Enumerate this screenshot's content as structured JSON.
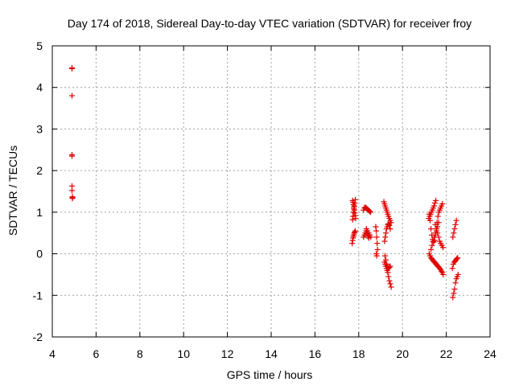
{
  "chart_data": {
    "type": "scatter",
    "title": "Day 174 of 2018, Sidereal Day-to-day VTEC variation (SDTVAR) for receiver froy",
    "xlabel": "GPS time / hours",
    "ylabel": "SDTVAR / TECUs",
    "xlim": [
      4,
      24
    ],
    "ylim": [
      -2,
      5
    ],
    "xticks": [
      4,
      6,
      8,
      10,
      12,
      14,
      16,
      18,
      20,
      22,
      24
    ],
    "yticks": [
      -2,
      -1,
      0,
      1,
      2,
      3,
      4,
      5
    ],
    "xtick_labels": [
      "4",
      "6",
      "8",
      "10",
      "12",
      "14",
      "16",
      "18",
      "20",
      "22",
      "24"
    ],
    "ytick_labels": [
      "-2",
      "-1",
      "0",
      "1",
      "2",
      "3",
      "4",
      "5"
    ],
    "grid": true,
    "marker": "+",
    "color": "#e00000",
    "series": [
      {
        "name": "SDTVAR",
        "x": [
          4.9,
          4.9,
          4.9,
          4.9,
          4.9,
          4.9,
          4.9,
          4.92,
          4.92,
          4.92,
          17.72,
          17.74,
          17.76,
          17.78,
          17.8,
          17.82,
          17.84,
          17.86,
          17.72,
          17.74,
          17.76,
          17.78,
          17.8,
          17.82,
          17.84,
          17.7,
          17.72,
          17.74,
          17.76,
          17.78,
          17.8,
          17.82,
          17.84,
          18.22,
          18.26,
          18.3,
          18.34,
          18.38,
          18.42,
          18.46,
          18.5,
          18.54,
          18.22,
          18.26,
          18.3,
          18.34,
          18.38,
          18.42,
          18.46,
          18.5,
          18.35,
          18.4,
          18.45,
          18.5,
          18.55,
          18.78,
          18.8,
          18.82,
          18.84,
          18.86,
          18.8,
          18.82,
          19.15,
          19.18,
          19.21,
          19.24,
          19.27,
          19.3,
          19.33,
          19.36,
          19.4,
          19.44,
          19.48,
          19.18,
          19.21,
          19.24,
          19.27,
          19.3,
          19.33,
          19.36,
          19.4,
          19.44,
          19.18,
          19.21,
          19.24,
          19.27,
          19.3,
          19.33,
          19.36,
          19.4,
          19.44,
          19.48,
          19.2,
          19.24,
          19.28,
          19.32,
          19.36,
          19.4,
          19.44,
          21.2,
          21.24,
          21.28,
          21.32,
          21.36,
          21.4,
          21.44,
          21.48,
          21.52,
          21.22,
          21.26,
          21.3,
          21.34,
          21.38,
          21.42,
          21.46,
          21.5,
          21.54,
          21.58,
          21.62,
          21.66,
          21.7,
          21.74,
          21.78,
          21.82,
          21.22,
          21.26,
          21.3,
          21.34,
          21.38,
          21.42,
          21.46,
          21.5,
          21.54,
          21.58,
          21.62,
          21.66,
          21.7,
          21.74,
          21.78,
          21.82,
          21.86,
          21.5,
          21.55,
          21.6,
          21.65,
          21.7,
          21.75,
          21.8,
          21.85,
          21.3,
          21.35,
          21.4,
          21.45,
          21.5,
          21.55,
          21.6,
          21.65,
          22.3,
          22.34,
          22.38,
          22.42,
          22.46,
          22.5,
          22.54,
          22.28,
          22.32,
          22.36,
          22.4,
          22.44,
          22.48,
          22.52,
          22.3,
          22.34,
          22.38,
          22.42,
          22.46
        ],
        "y": [
          4.47,
          4.45,
          3.8,
          2.38,
          2.35,
          1.63,
          1.52,
          1.37,
          1.35,
          1.33,
          1.28,
          1.24,
          1.18,
          1.12,
          1.05,
          0.98,
          0.92,
          0.85,
          0.82,
          0.9,
          1.0,
          1.08,
          1.15,
          1.22,
          1.3,
          0.25,
          0.32,
          0.38,
          0.42,
          0.46,
          0.5,
          0.52,
          0.55,
          1.05,
          1.1,
          1.12,
          1.1,
          1.08,
          1.06,
          1.04,
          1.02,
          1.0,
          0.4,
          0.45,
          0.5,
          0.55,
          0.48,
          0.42,
          0.38,
          0.45,
          0.6,
          0.55,
          0.5,
          0.45,
          0.4,
          0.65,
          0.55,
          0.4,
          0.25,
          0.1,
          0.0,
          -0.05,
          1.25,
          1.2,
          1.15,
          1.1,
          1.05,
          1.0,
          0.95,
          0.9,
          0.85,
          0.8,
          0.75,
          0.3,
          0.4,
          0.5,
          0.6,
          0.65,
          0.7,
          0.72,
          0.68,
          0.6,
          -0.2,
          -0.25,
          -0.3,
          -0.35,
          -0.4,
          -0.45,
          -0.55,
          -0.65,
          -0.72,
          -0.8,
          -0.05,
          -0.15,
          -0.25,
          -0.3,
          -0.35,
          -0.33,
          -0.3,
          0.85,
          0.9,
          0.95,
          1.0,
          1.05,
          1.1,
          1.15,
          1.22,
          1.28,
          0.95,
          0.8,
          0.6,
          0.45,
          0.35,
          0.28,
          0.32,
          0.45,
          0.6,
          0.75,
          0.9,
          1.0,
          1.05,
          1.1,
          1.15,
          1.2,
          0.0,
          -0.05,
          -0.1,
          -0.12,
          -0.15,
          -0.18,
          -0.2,
          -0.22,
          -0.25,
          -0.28,
          -0.3,
          -0.32,
          -0.35,
          -0.38,
          -0.42,
          -0.45,
          -0.5,
          0.7,
          0.6,
          0.5,
          0.4,
          0.3,
          0.25,
          0.2,
          0.15,
          0.1,
          0.2,
          0.3,
          0.4,
          0.5,
          0.55,
          0.65,
          0.75,
          -1.05,
          -0.95,
          -0.85,
          -0.7,
          -0.6,
          -0.55,
          -0.5,
          -0.35,
          -0.25,
          -0.2,
          -0.18,
          -0.15,
          -0.12,
          -0.1,
          0.4,
          0.5,
          0.6,
          0.7,
          0.8
        ]
      }
    ]
  }
}
